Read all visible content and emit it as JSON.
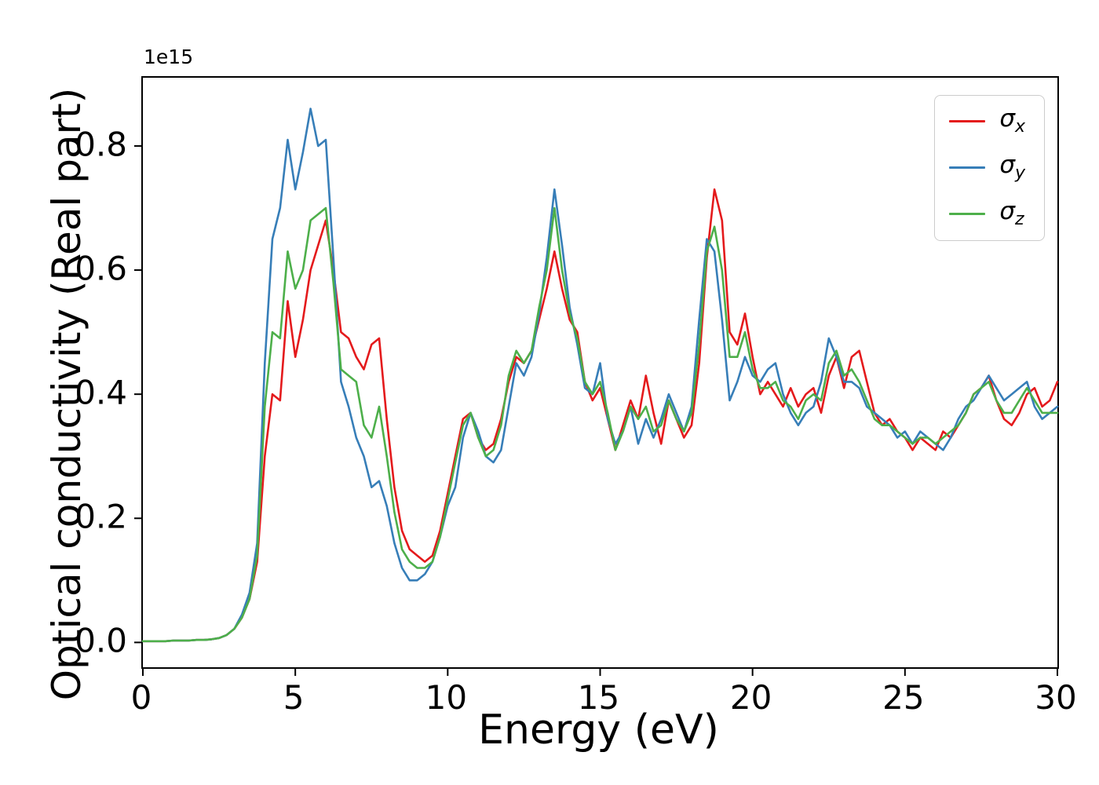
{
  "figure": {
    "offset_text": "1e15"
  },
  "chart_data": {
    "type": "line",
    "title": "",
    "xlabel": "Energy (eV)",
    "ylabel": "Optical conductivity (Real part)",
    "y_scale_factor": "1e15",
    "xlim": [
      0,
      30
    ],
    "ylim": [
      -0.04,
      0.91
    ],
    "x_ticks": [
      0,
      5,
      10,
      15,
      20,
      25,
      30
    ],
    "y_ticks": [
      0.0,
      0.2,
      0.4,
      0.6,
      0.8
    ],
    "grid": false,
    "legend_position": "upper right",
    "x_start": 0,
    "x_step": 0.25,
    "series": [
      {
        "name": "sigma_x",
        "label_base": "σ",
        "label_sub": "x",
        "color": "#e41a1c",
        "values": [
          0.002,
          0.002,
          0.002,
          0.002,
          0.003,
          0.003,
          0.003,
          0.004,
          0.004,
          0.005,
          0.007,
          0.012,
          0.022,
          0.04,
          0.07,
          0.13,
          0.3,
          0.4,
          0.39,
          0.55,
          0.46,
          0.52,
          0.6,
          0.64,
          0.68,
          0.6,
          0.5,
          0.49,
          0.46,
          0.44,
          0.48,
          0.49,
          0.36,
          0.25,
          0.18,
          0.15,
          0.14,
          0.13,
          0.14,
          0.18,
          0.24,
          0.3,
          0.36,
          0.37,
          0.33,
          0.31,
          0.32,
          0.36,
          0.42,
          0.46,
          0.45,
          0.47,
          0.52,
          0.57,
          0.63,
          0.57,
          0.52,
          0.5,
          0.42,
          0.39,
          0.41,
          0.36,
          0.31,
          0.35,
          0.39,
          0.36,
          0.43,
          0.37,
          0.32,
          0.39,
          0.36,
          0.33,
          0.35,
          0.45,
          0.62,
          0.73,
          0.68,
          0.5,
          0.48,
          0.53,
          0.46,
          0.4,
          0.42,
          0.4,
          0.38,
          0.41,
          0.38,
          0.4,
          0.41,
          0.37,
          0.43,
          0.46,
          0.41,
          0.46,
          0.47,
          0.42,
          0.37,
          0.35,
          0.36,
          0.34,
          0.33,
          0.31,
          0.33,
          0.32,
          0.31,
          0.34,
          0.33,
          0.35,
          0.37,
          0.4,
          0.41,
          0.43,
          0.39,
          0.36,
          0.35,
          0.37,
          0.4,
          0.41,
          0.38,
          0.39,
          0.42
        ]
      },
      {
        "name": "sigma_y",
        "label_base": "σ",
        "label_sub": "y",
        "color": "#377eb8",
        "values": [
          0.002,
          0.002,
          0.002,
          0.002,
          0.003,
          0.003,
          0.003,
          0.004,
          0.004,
          0.005,
          0.007,
          0.012,
          0.022,
          0.045,
          0.08,
          0.16,
          0.45,
          0.65,
          0.7,
          0.81,
          0.73,
          0.79,
          0.86,
          0.8,
          0.81,
          0.62,
          0.42,
          0.38,
          0.33,
          0.3,
          0.25,
          0.26,
          0.22,
          0.16,
          0.12,
          0.1,
          0.1,
          0.11,
          0.13,
          0.17,
          0.22,
          0.25,
          0.33,
          0.37,
          0.34,
          0.3,
          0.29,
          0.31,
          0.38,
          0.45,
          0.43,
          0.46,
          0.53,
          0.62,
          0.73,
          0.64,
          0.54,
          0.48,
          0.41,
          0.4,
          0.45,
          0.36,
          0.32,
          0.34,
          0.38,
          0.32,
          0.36,
          0.33,
          0.36,
          0.4,
          0.37,
          0.34,
          0.38,
          0.52,
          0.65,
          0.63,
          0.52,
          0.39,
          0.42,
          0.46,
          0.43,
          0.42,
          0.44,
          0.45,
          0.4,
          0.37,
          0.35,
          0.37,
          0.38,
          0.42,
          0.49,
          0.46,
          0.42,
          0.42,
          0.41,
          0.38,
          0.37,
          0.36,
          0.35,
          0.33,
          0.34,
          0.32,
          0.34,
          0.33,
          0.32,
          0.31,
          0.33,
          0.36,
          0.38,
          0.39,
          0.41,
          0.43,
          0.41,
          0.39,
          0.4,
          0.41,
          0.42,
          0.38,
          0.36,
          0.37,
          0.38
        ]
      },
      {
        "name": "sigma_z",
        "label_base": "σ",
        "label_sub": "z",
        "color": "#4daf4a",
        "values": [
          0.002,
          0.002,
          0.002,
          0.002,
          0.003,
          0.003,
          0.003,
          0.004,
          0.004,
          0.005,
          0.007,
          0.012,
          0.022,
          0.04,
          0.07,
          0.14,
          0.38,
          0.5,
          0.49,
          0.63,
          0.57,
          0.6,
          0.68,
          0.69,
          0.7,
          0.58,
          0.44,
          0.43,
          0.42,
          0.35,
          0.33,
          0.38,
          0.3,
          0.21,
          0.15,
          0.13,
          0.12,
          0.12,
          0.13,
          0.17,
          0.23,
          0.29,
          0.35,
          0.37,
          0.33,
          0.3,
          0.31,
          0.35,
          0.43,
          0.47,
          0.45,
          0.47,
          0.54,
          0.6,
          0.7,
          0.6,
          0.53,
          0.49,
          0.42,
          0.4,
          0.42,
          0.37,
          0.31,
          0.34,
          0.38,
          0.36,
          0.38,
          0.34,
          0.35,
          0.39,
          0.36,
          0.34,
          0.37,
          0.48,
          0.63,
          0.67,
          0.6,
          0.46,
          0.46,
          0.5,
          0.44,
          0.41,
          0.41,
          0.42,
          0.39,
          0.38,
          0.36,
          0.39,
          0.4,
          0.39,
          0.45,
          0.47,
          0.43,
          0.44,
          0.42,
          0.39,
          0.36,
          0.35,
          0.35,
          0.34,
          0.33,
          0.32,
          0.33,
          0.33,
          0.32,
          0.33,
          0.34,
          0.35,
          0.37,
          0.4,
          0.41,
          0.42,
          0.39,
          0.37,
          0.37,
          0.39,
          0.41,
          0.39,
          0.37,
          0.37,
          0.37
        ]
      }
    ]
  }
}
